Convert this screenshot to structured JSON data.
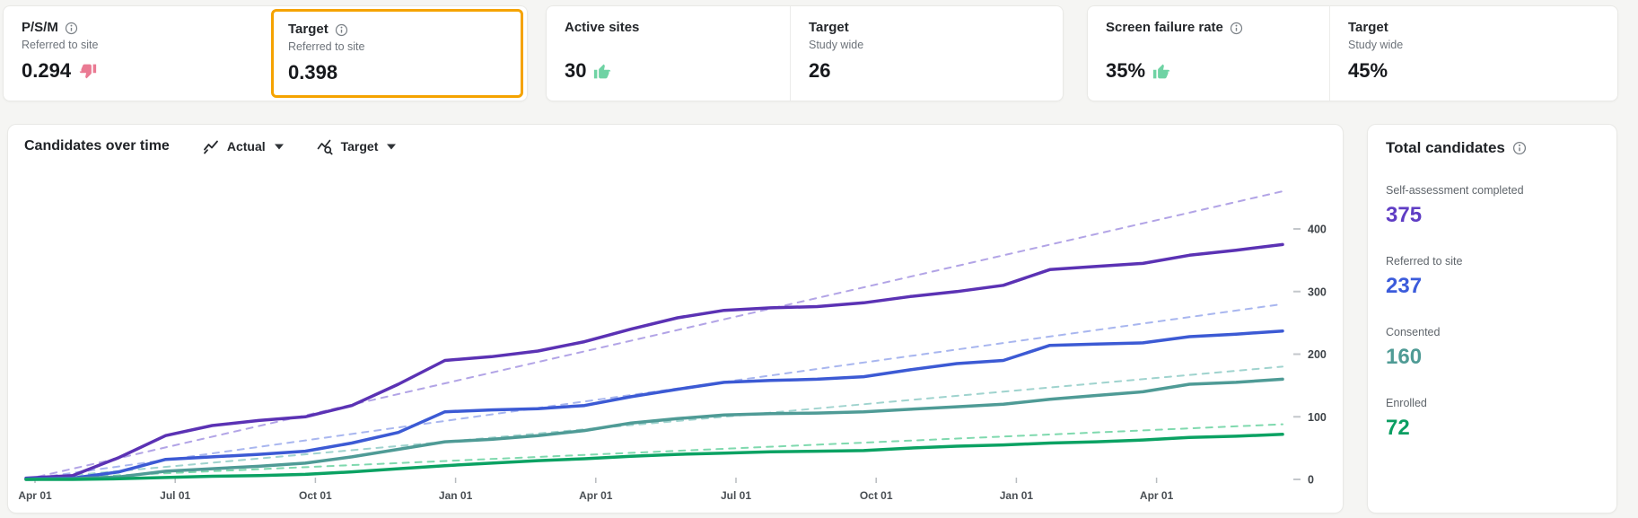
{
  "kpi_cards": [
    {
      "metric": {
        "label": "P/S/M",
        "sublabel": "Referred to site",
        "value": "0.294",
        "indicator": "thumbs-down"
      },
      "target": {
        "label": "Target",
        "sublabel": "Referred to site",
        "value": "0.398",
        "highlighted": true
      }
    },
    {
      "metric": {
        "label": "Active sites",
        "sublabel": "",
        "value": "30",
        "indicator": "thumbs-up"
      },
      "target": {
        "label": "Target",
        "sublabel": "Study wide",
        "value": "26"
      }
    },
    {
      "metric": {
        "label": "Screen failure rate",
        "sublabel": "",
        "value": "35%",
        "indicator": "thumbs-up"
      },
      "target": {
        "label": "Target",
        "sublabel": "Study wide",
        "value": "45%"
      }
    }
  ],
  "chart_panel": {
    "title": "Candidates over time",
    "actual_dropdown_label": "Actual",
    "target_dropdown_label": "Target"
  },
  "chart_data": {
    "type": "line",
    "title": "Candidates over time",
    "x_tick_labels": [
      "Apr 01",
      "Jul 01",
      "Oct 01",
      "Jan 01",
      "Apr 01",
      "Jul 01",
      "Oct 01",
      "Jan 01",
      "Apr 01"
    ],
    "y_ticks": [
      0,
      100,
      200,
      300,
      400
    ],
    "ylim": [
      0,
      565
    ],
    "grid": false,
    "legend": "none",
    "x_unit": "monthly samples across ~27 months",
    "series": [
      {
        "name": "Self-assessment completed (target)",
        "style": "dashed",
        "color": "#b2a4e6",
        "values": [
          0,
          460
        ]
      },
      {
        "name": "Referred to site (target)",
        "style": "dashed",
        "color": "#a8b6ef",
        "values": [
          0,
          280
        ]
      },
      {
        "name": "Consented (target)",
        "style": "dashed",
        "color": "#9fd3ce",
        "values": [
          0,
          180
        ]
      },
      {
        "name": "Enrolled (target)",
        "style": "dashed",
        "color": "#7fd9ae",
        "values": [
          0,
          88
        ]
      },
      {
        "name": "Self-assessment completed (actual)",
        "style": "solid",
        "color": "#5b32b4",
        "values": [
          2,
          6,
          35,
          70,
          86,
          94,
          100,
          118,
          152,
          190,
          196,
          205,
          220,
          240,
          258,
          270,
          274,
          276,
          282,
          292,
          300,
          310,
          335,
          340,
          345,
          358,
          366,
          375
        ]
      },
      {
        "name": "Referred to site (actual)",
        "style": "solid",
        "color": "#3c5ad4",
        "values": [
          1,
          2,
          12,
          32,
          36,
          40,
          45,
          58,
          75,
          108,
          111,
          113,
          118,
          132,
          144,
          155,
          158,
          160,
          164,
          175,
          185,
          190,
          214,
          216,
          218,
          228,
          232,
          237
        ]
      },
      {
        "name": "Consented (actual)",
        "style": "solid",
        "color": "#4f9b96",
        "values": [
          0,
          1,
          4,
          13,
          17,
          21,
          26,
          36,
          48,
          60,
          64,
          70,
          78,
          90,
          97,
          103,
          105,
          106,
          108,
          112,
          116,
          120,
          128,
          134,
          140,
          152,
          155,
          160
        ]
      },
      {
        "name": "Enrolled (actual)",
        "style": "solid",
        "color": "#0ba263",
        "values": [
          0,
          0,
          1,
          3,
          5,
          6,
          8,
          12,
          17,
          22,
          26,
          30,
          33,
          37,
          40,
          42,
          44,
          45,
          46,
          50,
          53,
          55,
          58,
          60,
          63,
          67,
          69,
          72
        ]
      }
    ]
  },
  "totals_panel": {
    "title": "Total candidates",
    "items": [
      {
        "label": "Self-assessment completed",
        "value": "375",
        "color": "#5f3dc4"
      },
      {
        "label": "Referred to site",
        "value": "237",
        "color": "#3b5bdb"
      },
      {
        "label": "Consented",
        "value": "160",
        "color": "#4f9b95"
      },
      {
        "label": "Enrolled",
        "value": "72",
        "color": "#0b9e62"
      }
    ]
  },
  "colors": {
    "highlight_border": "#f5a300",
    "thumb_up": "#6fd3a4",
    "thumb_down": "#ea7a93",
    "page_background": "#f5f5f3"
  }
}
